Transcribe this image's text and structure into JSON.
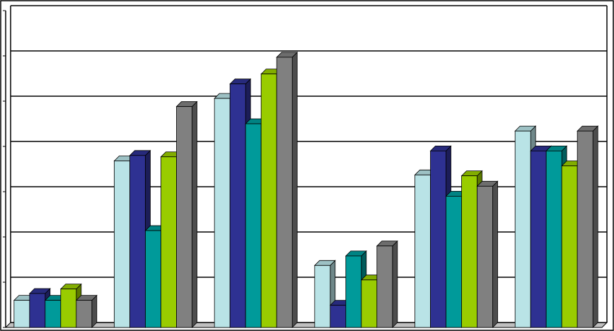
{
  "chart_data": {
    "type": "bar3d",
    "categories": [
      null,
      null,
      null,
      null,
      null,
      null
    ],
    "ylim": [
      0,
      7
    ],
    "yticks": [
      0,
      1,
      2,
      3,
      4,
      5,
      6,
      7
    ],
    "grid": true,
    "series": [
      {
        "color": "#b9e3e6",
        "values": [
          0.6,
          3.68,
          5.06,
          1.37,
          3.37,
          4.34
        ]
      },
      {
        "color": "#2e3192",
        "values": [
          0.75,
          3.8,
          5.38,
          0.49,
          3.9,
          3.9
        ]
      },
      {
        "color": "#009a9a",
        "values": [
          0.6,
          2.14,
          4.5,
          1.58,
          2.9,
          3.9
        ]
      },
      {
        "color": "#99cc00",
        "values": [
          0.85,
          3.77,
          5.6,
          1.05,
          3.35,
          3.57
        ]
      },
      {
        "color": "#808080",
        "values": [
          0.6,
          4.88,
          5.97,
          1.8,
          3.12,
          4.34
        ]
      }
    ]
  }
}
